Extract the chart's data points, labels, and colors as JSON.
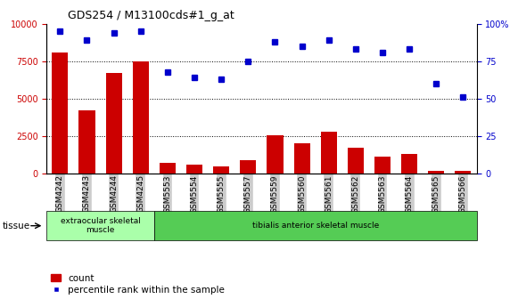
{
  "title": "GDS254 / M13100cds#1_g_at",
  "categories": [
    "GSM4242",
    "GSM4243",
    "GSM4244",
    "GSM4245",
    "GSM5553",
    "GSM5554",
    "GSM5555",
    "GSM5557",
    "GSM5559",
    "GSM5560",
    "GSM5561",
    "GSM5562",
    "GSM5563",
    "GSM5564",
    "GSM5565",
    "GSM5566"
  ],
  "counts": [
    8100,
    4200,
    6700,
    7500,
    700,
    600,
    450,
    900,
    2550,
    2000,
    2800,
    1700,
    1100,
    1300,
    200,
    150
  ],
  "percentiles": [
    95,
    89,
    94,
    95,
    68,
    64,
    63,
    75,
    88,
    85,
    89,
    83,
    81,
    83,
    60,
    51
  ],
  "group1_label": "extraocular skeletal\nmuscle",
  "group2_label": "tibialis anterior skeletal muscle",
  "tissue_label": "tissue",
  "bar_color": "#cc0000",
  "dot_color": "#0000cc",
  "group1_bg": "#aaffaa",
  "group2_bg": "#55cc55",
  "xticklabel_bg": "#cccccc",
  "ylim_left": [
    0,
    10000
  ],
  "ylim_right": [
    0,
    100
  ],
  "yticks_left": [
    0,
    2500,
    5000,
    7500,
    10000
  ],
  "yticks_right": [
    0,
    25,
    50,
    75,
    100
  ],
  "grid_values": [
    2500,
    5000,
    7500
  ],
  "legend_count_label": "count",
  "legend_pct_label": "percentile rank within the sample",
  "bar_width": 0.6,
  "n_group1": 4,
  "n_group2": 12
}
